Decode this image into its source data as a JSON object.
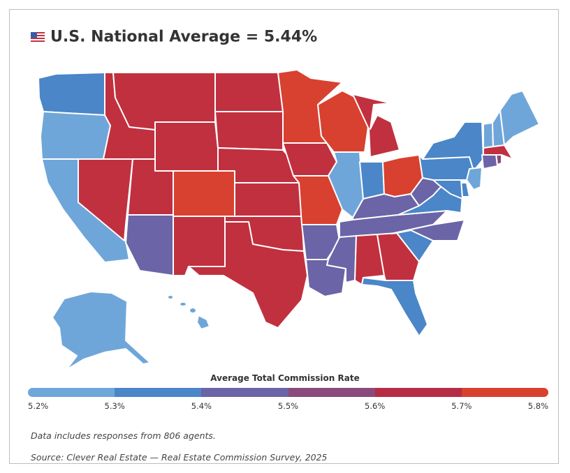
{
  "title": "U.S. National Average = 5.44%",
  "flag_icon": "us-flag-icon",
  "legend": {
    "title": "Average Total Commission Rate",
    "ticks": [
      "5.2%",
      "5.3%",
      "5.4%",
      "5.5%",
      "5.6%",
      "5.7%",
      "5.8%"
    ],
    "colors": [
      "#6fa6da",
      "#4a86c8",
      "#6b64a6",
      "#8a4a7e",
      "#b52d45",
      "#d8412f"
    ]
  },
  "palette": {
    "light_blue": "#6fa6da",
    "blue": "#4a86c8",
    "purple": "#6b64a6",
    "magenta": "#8a4a7e",
    "red": "#c1303f",
    "orange_red": "#d8412f"
  },
  "state_colors": {
    "washington": "blue",
    "oregon": "light_blue",
    "california": "light_blue",
    "nevada": "red",
    "idaho": "red",
    "montana": "red",
    "wyoming": "red",
    "utah": "red",
    "arizona": "purple",
    "colorado": "orange_red",
    "new_mexico": "red",
    "north_dakota": "red",
    "south_dakota": "red",
    "nebraska": "red",
    "kansas": "red",
    "oklahoma": "red",
    "texas": "red",
    "minnesota": "orange_red",
    "iowa": "red",
    "missouri": "orange_red",
    "arkansas": "purple",
    "louisiana": "purple",
    "wisconsin": "orange_red",
    "illinois": "light_blue",
    "michigan": "red",
    "indiana": "blue",
    "ohio": "orange_red",
    "kentucky": "purple",
    "tennessee": "purple",
    "mississippi": "purple",
    "alabama": "red",
    "georgia": "red",
    "florida": "blue",
    "south_carolina": "blue",
    "north_carolina": "purple",
    "virginia": "blue",
    "west_virginia": "purple",
    "pennsylvania": "blue",
    "new_york": "blue",
    "vermont": "light_blue",
    "new_hampshire": "light_blue",
    "maine": "light_blue",
    "massachusetts": "red",
    "connecticut": "purple",
    "rhode_island": "magenta",
    "new_jersey": "light_blue",
    "delaware": "blue",
    "maryland": "blue",
    "alaska": "light_blue",
    "hawaii": "light_blue"
  },
  "notes": {
    "responses": "Data includes responses from 806 agents.",
    "source": "Source: Clever Real Estate — Real Estate Commission Survey, 2025"
  }
}
